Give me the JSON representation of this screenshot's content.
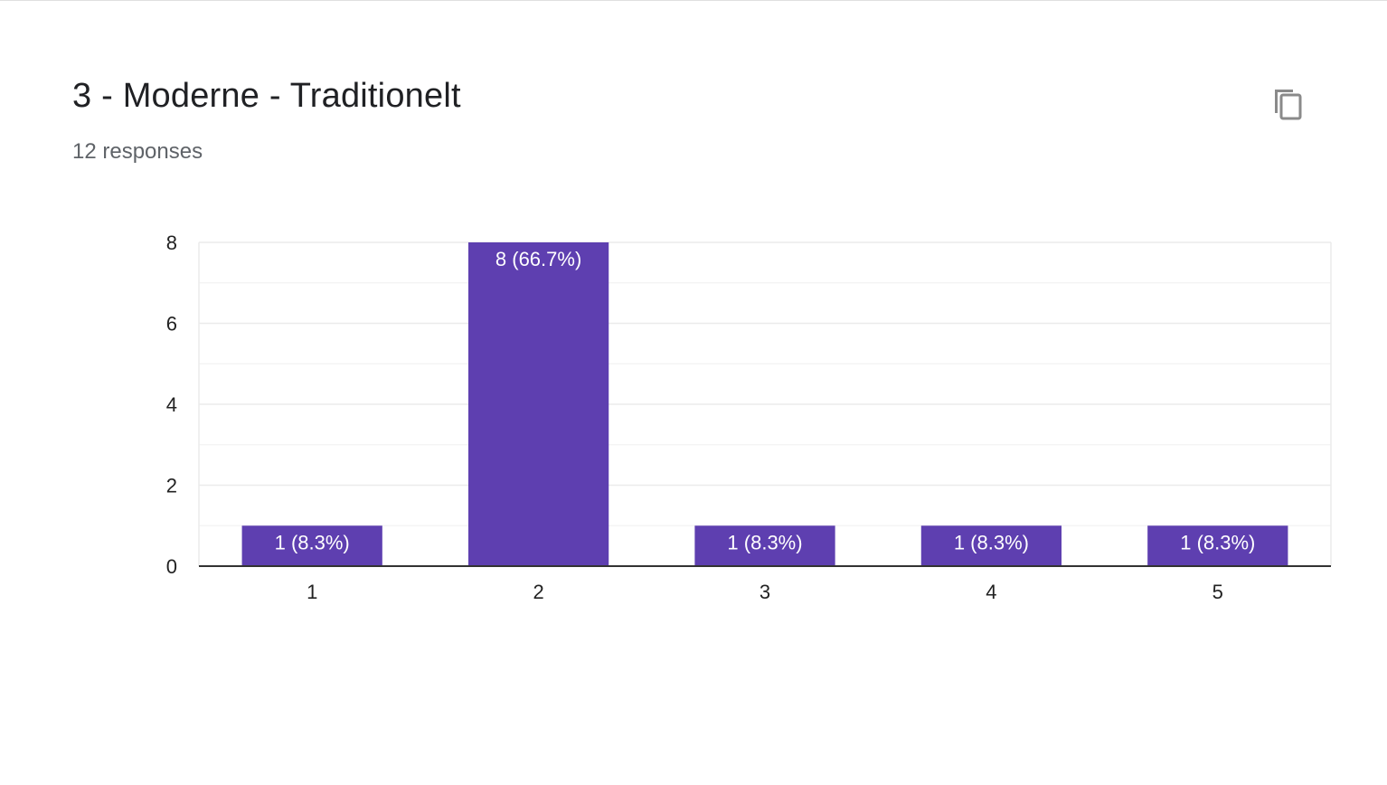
{
  "card": {
    "title": "3 - Moderne - Traditionelt",
    "subtitle": "12 responses",
    "copy_icon": "copy-icon"
  },
  "colors": {
    "bar": "#5e3fb0",
    "grid": "#ebebeb",
    "axis": "#333333",
    "tick_text": "#222222",
    "bar_label": "#ffffff"
  },
  "chart_data": {
    "type": "bar",
    "categories": [
      "1",
      "2",
      "3",
      "4",
      "5"
    ],
    "values": [
      1,
      8,
      1,
      1,
      1
    ],
    "data_labels": [
      "1 (8.3%)",
      "8 (66.7%)",
      "1 (8.3%)",
      "1 (8.3%)",
      "1 (8.3%)"
    ],
    "ylim": [
      0,
      8
    ],
    "y_ticks": [
      0,
      2,
      4,
      6,
      8
    ],
    "y_minor_ticks": [
      1,
      3,
      5,
      7
    ],
    "grid": true,
    "xlabel": "",
    "ylabel": ""
  }
}
